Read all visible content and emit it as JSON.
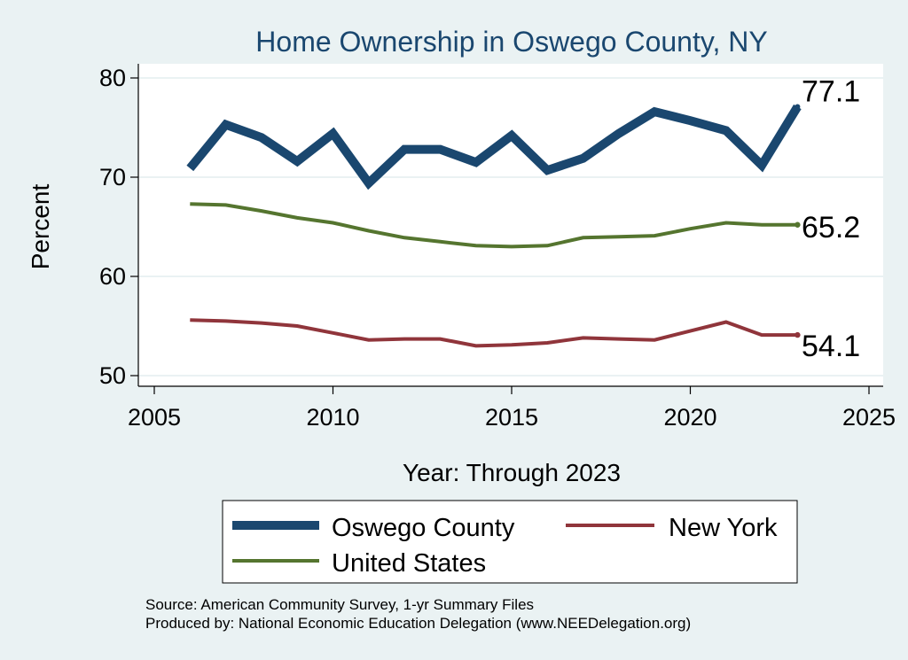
{
  "chart_data": {
    "type": "line",
    "title": "Home Ownership in Oswego County, NY",
    "xlabel": "Year: Through 2023",
    "ylabel": "Percent",
    "xlim": [
      2005,
      2025
    ],
    "ylim": [
      49,
      81
    ],
    "xticks": [
      "2005",
      "2010",
      "2015",
      "2020",
      "2025"
    ],
    "yticks": [
      "50",
      "60",
      "70",
      "80"
    ],
    "grid": true,
    "x": [
      2006,
      2007,
      2008,
      2009,
      2010,
      2011,
      2012,
      2013,
      2014,
      2015,
      2016,
      2017,
      2018,
      2019,
      2020,
      2021,
      2022,
      2023
    ],
    "series": [
      {
        "name": "Oswego County",
        "color": "#1a476f",
        "values": [
          70.9,
          75.3,
          74.0,
          71.6,
          74.4,
          69.4,
          72.8,
          72.8,
          71.5,
          74.2,
          70.7,
          71.9,
          74.4,
          76.6,
          75.7,
          74.7,
          71.2,
          77.1
        ],
        "end_label": "77.1"
      },
      {
        "name": "New York",
        "color": "#90353b",
        "values": [
          55.6,
          55.5,
          55.3,
          55.0,
          54.3,
          53.6,
          53.7,
          53.7,
          53.0,
          53.1,
          53.3,
          53.8,
          53.7,
          53.6,
          54.5,
          55.4,
          54.1,
          54.1
        ],
        "end_label": "54.1"
      },
      {
        "name": "United States",
        "color": "#55752f",
        "values": [
          67.3,
          67.2,
          66.6,
          65.9,
          65.4,
          64.6,
          63.9,
          63.5,
          63.1,
          63.0,
          63.1,
          63.9,
          64.0,
          64.1,
          64.8,
          65.4,
          65.2,
          65.2
        ],
        "end_label": "65.2"
      }
    ],
    "legend": [
      {
        "label": "Oswego County",
        "color": "#1a476f"
      },
      {
        "label": "New York",
        "color": "#90353b"
      },
      {
        "label": "United States",
        "color": "#55752f"
      }
    ],
    "legend_position": "bottom",
    "source_lines": [
      "Source: American Community Survey, 1-yr Summary Files",
      "Produced by: National Economic Education Delegation (www.NEEDelegation.org)"
    ]
  },
  "colors": {
    "background": "#eaf2f3",
    "plot_background": "#ffffff",
    "title": "#1a476f",
    "grid": "#eaf2f3"
  }
}
